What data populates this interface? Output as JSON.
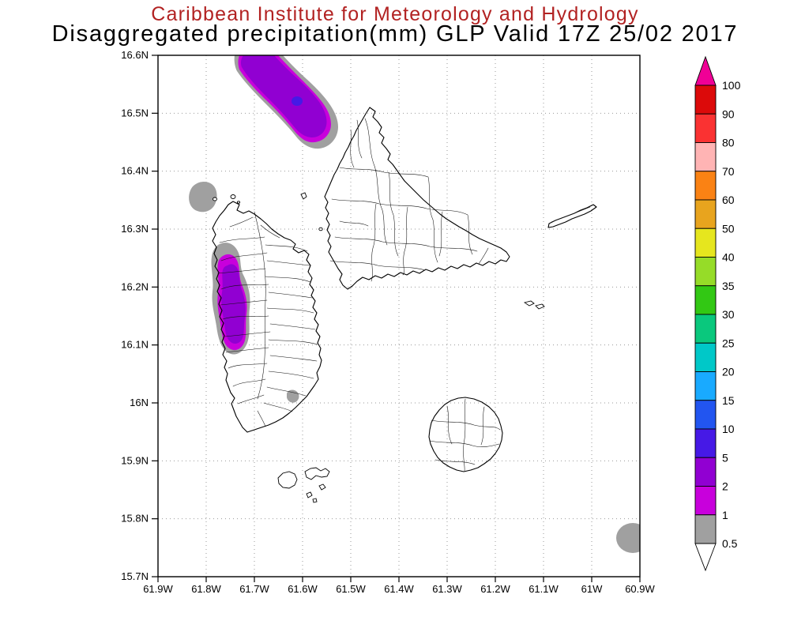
{
  "title": {
    "line1": "Caribbean Institute for Meteorology and Hydrology",
    "line1_color": "#b22222",
    "line2": "Disaggregated precipitation(mm) GLP Valid 17Z 25/02 2017"
  },
  "map": {
    "y_ticks": [
      "16.6N",
      "16.5N",
      "16.4N",
      "16.3N",
      "16.2N",
      "16.1N",
      "16N",
      "15.9N",
      "15.8N",
      "15.7N"
    ],
    "x_ticks": [
      "61.9W",
      "61.8W",
      "61.7W",
      "61.6W",
      "61.5W",
      "61.4W",
      "61.3W",
      "61.2W",
      "61.1W",
      "61W",
      "60.9W"
    ]
  },
  "colorbar": {
    "labels_top_to_bottom": [
      "100",
      "90",
      "80",
      "70",
      "60",
      "50",
      "40",
      "35",
      "30",
      "25",
      "20",
      "15",
      "10",
      "5",
      "2",
      "1",
      "0.5"
    ],
    "band_colors_top_to_bottom": [
      "#dc0a0a",
      "#fa3232",
      "#ffb4b4",
      "#fa8214",
      "#e8a41e",
      "#e6e61e",
      "#96dc28",
      "#32c814",
      "#0ac87d",
      "#00c8c8",
      "#19aaff",
      "#2255f0",
      "#4619e6",
      "#9100d2",
      "#c800dc",
      "#a0a0a0"
    ],
    "arrow_top_color": "#f00096",
    "arrow_bottom_color": "#ffffff"
  },
  "chart_data": {
    "type": "heatmap",
    "title": "Disaggregated precipitation(mm) GLP Valid 17Z 25/02 2017",
    "subtitle": "Caribbean Institute for Meteorology and Hydrology",
    "x_range": [
      "61.9W",
      "60.9W"
    ],
    "y_range": [
      "15.7N",
      "16.6N"
    ],
    "grid": "dotted",
    "legend_position": "right-vertical-colorbar",
    "levels_mm": [
      0.5,
      1,
      2,
      5,
      10,
      15,
      20,
      25,
      30,
      35,
      40,
      50,
      60,
      70,
      80,
      90,
      100
    ],
    "shaded_regions": [
      {
        "area": "offshore band NW of Grande-Terre, ~16.48N-16.6N between 61.55W and 61.75W",
        "bands_mm": [
          "0.5-1",
          "1-2",
          "2-5",
          "5-10"
        ],
        "peak_mm": "5-10"
      },
      {
        "area": "west coast of Basse-Terre, ~16.1N-16.28N near 61.78W",
        "bands_mm": [
          "0.5-1",
          "1-2",
          "2-5"
        ],
        "peak_mm": "2-5"
      },
      {
        "area": "offshore NW of Basse-Terre, ~16.35N 61.85W",
        "bands_mm": [
          "0.5-1"
        ],
        "peak_mm": "0.5-1"
      },
      {
        "area": "southeast Basse-Terre spot, ~16.01N 61.62W",
        "bands_mm": [
          "0.5-1"
        ],
        "peak_mm": "0.5-1"
      },
      {
        "area": "southeast corner of domain, ~15.78N 60.92W",
        "bands_mm": [
          "0.5-1"
        ],
        "peak_mm": "0.5-1"
      }
    ]
  }
}
